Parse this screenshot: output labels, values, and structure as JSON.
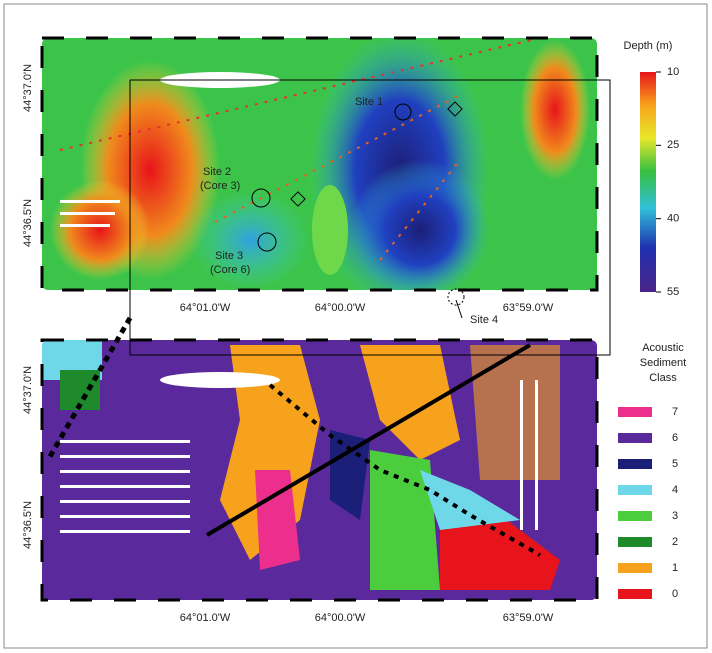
{
  "top_map": {
    "colorbar": {
      "title": "Depth (m)",
      "lim": [
        10,
        55
      ],
      "ticks": [
        10,
        25,
        40,
        55
      ]
    },
    "x_labels": [
      "64°01.0'W",
      "64°00.0'W",
      "63°59.0'W"
    ],
    "y_labels": [
      "44°37.0'N",
      "44°36.5'N"
    ],
    "sites": {
      "site1": "Site 1",
      "site2": [
        "Site 2",
        "(Core 3)"
      ],
      "site3": [
        "Site 3",
        "(Core 6)"
      ],
      "site4": "Site 4"
    }
  },
  "bottom_map": {
    "legend_title": [
      "Acoustic",
      "Sediment",
      "Class"
    ],
    "classes": [
      {
        "label": "7",
        "color": "#ec2f8c"
      },
      {
        "label": "6",
        "color": "#5a2a9c"
      },
      {
        "label": "5",
        "color": "#1c1f78"
      },
      {
        "label": "4",
        "color": "#6fd8e8"
      },
      {
        "label": "3",
        "color": "#4ccd3e"
      },
      {
        "label": "2",
        "color": "#1f8a2c"
      },
      {
        "label": "1",
        "color": "#f7a21c"
      },
      {
        "label": "0",
        "color": "#e8141b"
      }
    ],
    "x_labels": [
      "64°01.0'W",
      "64°00.0'W",
      "63°59.0'W"
    ],
    "y_labels": [
      "44°37.0'N",
      "44°36.5'N"
    ]
  }
}
